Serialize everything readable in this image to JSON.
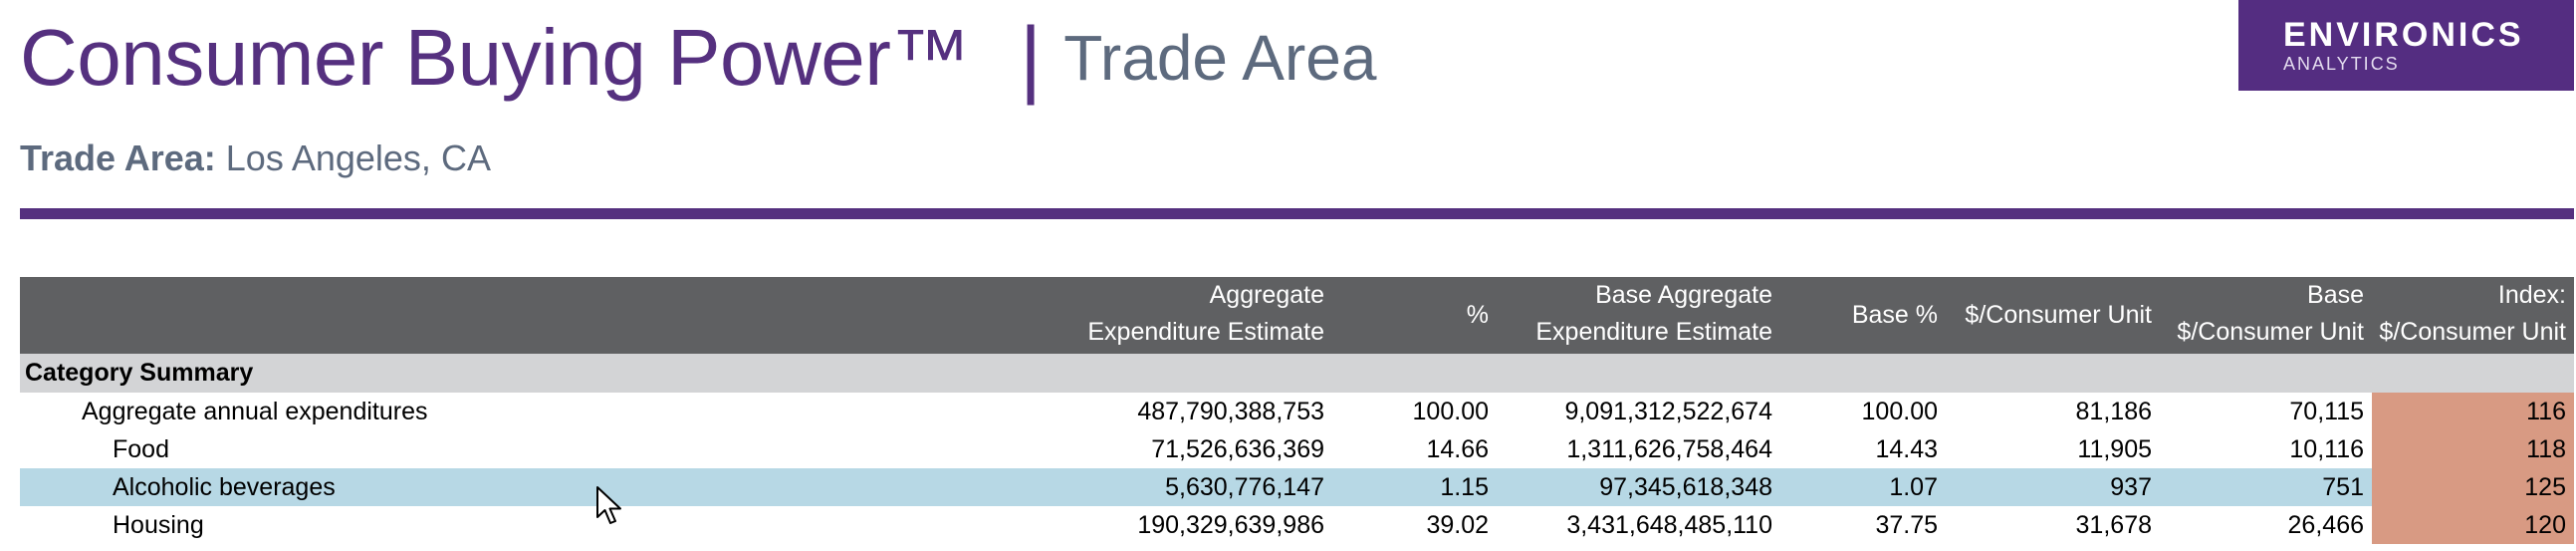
{
  "header": {
    "title": "Consumer Buying Power™",
    "separator": "|",
    "subtitle": "Trade Area",
    "logo_main": "ENVIRONICS",
    "logo_sub": "ANALYTICS"
  },
  "trade_area": {
    "label": "Trade Area:",
    "value": "Los Angeles, CA"
  },
  "table": {
    "columns": [
      {
        "line1": "",
        "line2": ""
      },
      {
        "line1": "Aggregate",
        "line2": "Expenditure Estimate"
      },
      {
        "line1": "",
        "line2": "%"
      },
      {
        "line1": "Base Aggregate",
        "line2": "Expenditure Estimate"
      },
      {
        "line1": "",
        "line2": "Base %"
      },
      {
        "line1": "",
        "line2": "$/Consumer Unit"
      },
      {
        "line1": "Base",
        "line2": "$/Consumer Unit"
      },
      {
        "line1": "Index:",
        "line2": "$/Consumer Unit"
      }
    ],
    "section_label": "Category Summary",
    "rows": [
      {
        "label": "Aggregate annual expenditures",
        "agg": "487,790,388,753",
        "pct": "100.00",
        "base_agg": "9,091,312,522,674",
        "base_pct": "100.00",
        "cu": "81,186",
        "base_cu": "70,115",
        "index": "116"
      },
      {
        "label": "Food",
        "agg": "71,526,636,369",
        "pct": "14.66",
        "base_agg": "1,311,626,758,464",
        "base_pct": "14.43",
        "cu": "11,905",
        "base_cu": "10,116",
        "index": "118"
      },
      {
        "label": "Alcoholic beverages",
        "agg": "5,630,776,147",
        "pct": "1.15",
        "base_agg": "97,345,618,348",
        "base_pct": "1.07",
        "cu": "937",
        "base_cu": "751",
        "index": "125"
      },
      {
        "label": "Housing",
        "agg": "190,329,639,986",
        "pct": "39.02",
        "base_agg": "3,431,648,485,110",
        "base_pct": "37.75",
        "cu": "31,678",
        "base_cu": "26,466",
        "index": "120"
      }
    ]
  },
  "colors": {
    "brand_purple": "#55307f",
    "header_gray": "#5f6062",
    "section_gray": "#d3d4d6",
    "selected_row": "#b7d8e5",
    "index_cell": "#d89a83"
  },
  "icons": [
    "mouse-cursor-icon"
  ]
}
